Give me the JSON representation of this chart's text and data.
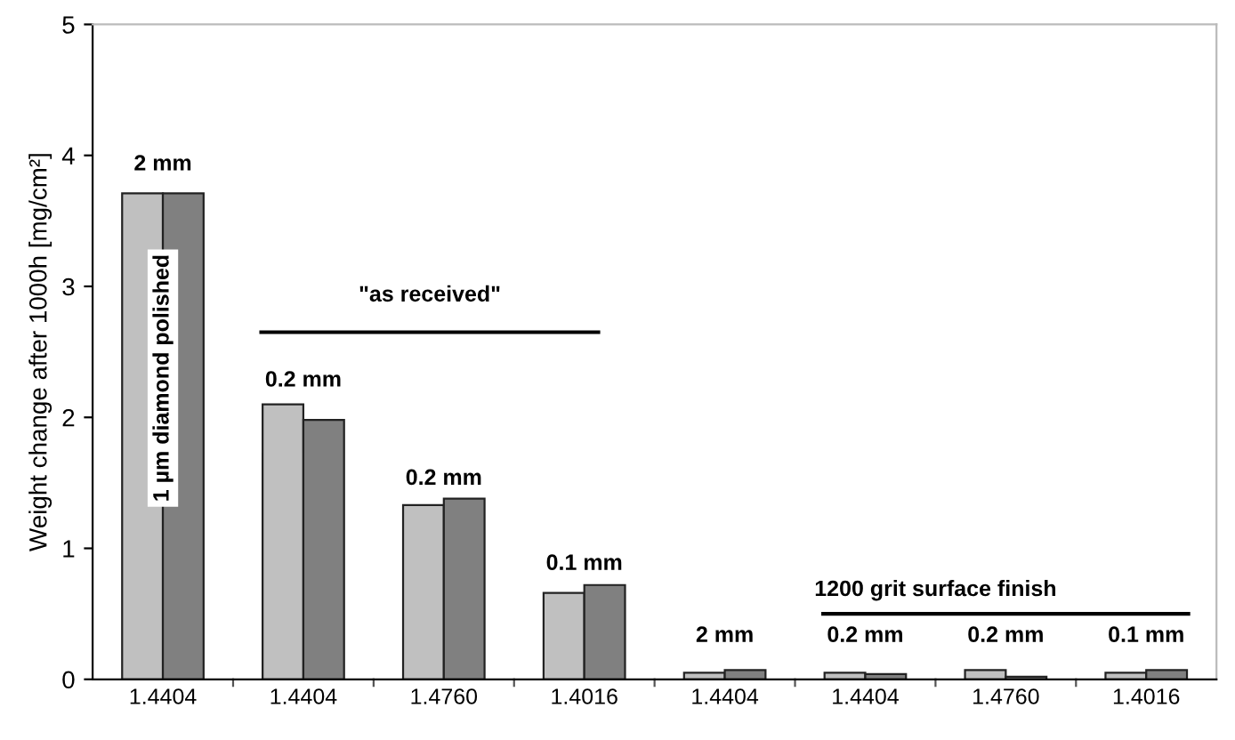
{
  "chart_data": {
    "type": "bar",
    "ylabel": "Weight change after 1000h [mg/cm²]",
    "categories": [
      "1.4404",
      "1.4404",
      "1.4760",
      "1.4016",
      "1.4404",
      "1.4404",
      "1.4760",
      "1.4016"
    ],
    "series": [
      {
        "color": "#c0c0c0",
        "values": [
          3.71,
          2.1,
          1.33,
          0.66,
          0.05,
          0.05,
          0.07,
          0.05
        ]
      },
      {
        "color": "#808080",
        "values": [
          3.71,
          1.98,
          1.38,
          0.72,
          0.07,
          0.04,
          0.02,
          0.07
        ]
      }
    ],
    "ylim": [
      0,
      5
    ],
    "yticks": [
      0,
      1,
      2,
      3,
      4,
      5
    ],
    "grid": false,
    "legend": false,
    "annotations": [
      "2 mm",
      "1 µm diamond polished",
      "\"as received\"",
      "0.2 mm",
      "0.2 mm",
      "0.1 mm",
      "1200 grit surface finish",
      "2 mm",
      "0.2 mm",
      "0.2 mm",
      "0.1 mm"
    ]
  }
}
